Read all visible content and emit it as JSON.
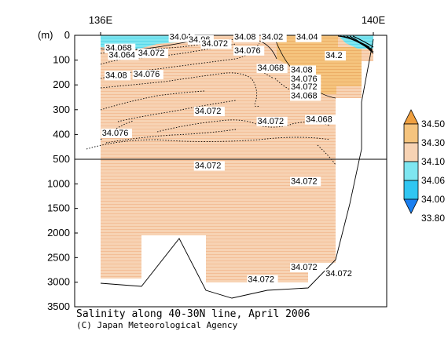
{
  "chart_data": {
    "type": "heatmap",
    "title": "Salinity along 40-30N line, April 2006",
    "credit": "(C) Japan Meteorological Agency",
    "xlabel": "",
    "ylabel": "(m)",
    "x_ticks": [
      "136E",
      "140E"
    ],
    "xlim": [
      136,
      140
    ],
    "y_ticks_upper": [
      "0",
      "100",
      "200",
      "300",
      "400",
      "500"
    ],
    "y_ticks_lower": [
      "1000",
      "1500",
      "2000",
      "2500",
      "3000",
      "3500"
    ],
    "ylim_upper": [
      0,
      500
    ],
    "ylim_lower": [
      500,
      3500
    ],
    "colorbar": {
      "levels": [
        "34.50",
        "34.30",
        "34.10",
        "34.06",
        "34.00",
        "33.80"
      ],
      "colors": [
        "#f0a040",
        "#f5c47e",
        "#f7d3b4",
        "#7ee6f0",
        "#30c6f2",
        "#1a7ff0"
      ]
    },
    "contour_labels": [
      {
        "text": "34.04",
        "x": 137.01,
        "depth": 18
      },
      {
        "text": "34.06",
        "x": 137.29,
        "depth": 28
      },
      {
        "text": "34.068",
        "x": 136.07,
        "depth": 62
      },
      {
        "text": "34.064",
        "x": 136.12,
        "depth": 90
      },
      {
        "text": "34.072",
        "x": 136.55,
        "depth": 82
      },
      {
        "text": "34.072",
        "x": 137.48,
        "depth": 45
      },
      {
        "text": "34.08",
        "x": 136.07,
        "depth": 172
      },
      {
        "text": "34.076",
        "x": 136.48,
        "depth": 168
      },
      {
        "text": "34.08",
        "x": 137.96,
        "depth": 18
      },
      {
        "text": "34.076",
        "x": 137.96,
        "depth": 72
      },
      {
        "text": "34.02",
        "x": 138.36,
        "depth": 18
      },
      {
        "text": "34.04",
        "x": 138.87,
        "depth": 18
      },
      {
        "text": "34.068",
        "x": 138.3,
        "depth": 143
      },
      {
        "text": "34.08",
        "x": 138.79,
        "depth": 150
      },
      {
        "text": "34.076",
        "x": 138.79,
        "depth": 187
      },
      {
        "text": "34.072",
        "x": 138.79,
        "depth": 218
      },
      {
        "text": "34.068",
        "x": 138.79,
        "depth": 255
      },
      {
        "text": "34.2",
        "x": 139.3,
        "depth": 92
      },
      {
        "text": "34.072",
        "x": 137.38,
        "depth": 317
      },
      {
        "text": "34.072",
        "x": 138.3,
        "depth": 357
      },
      {
        "text": "34.068",
        "x": 139.01,
        "depth": 350
      },
      {
        "text": "34.076",
        "x": 136.02,
        "depth": 405
      },
      {
        "text": "34.072",
        "x": 137.38,
        "depth": 684
      },
      {
        "text": "34.072",
        "x": 138.79,
        "depth": 1000
      },
      {
        "text": "34.072",
        "x": 138.79,
        "depth": 2750
      },
      {
        "text": "34.072",
        "x": 138.16,
        "depth": 3000
      },
      {
        "text": "34.072",
        "x": 139.3,
        "depth": 2880
      }
    ]
  }
}
